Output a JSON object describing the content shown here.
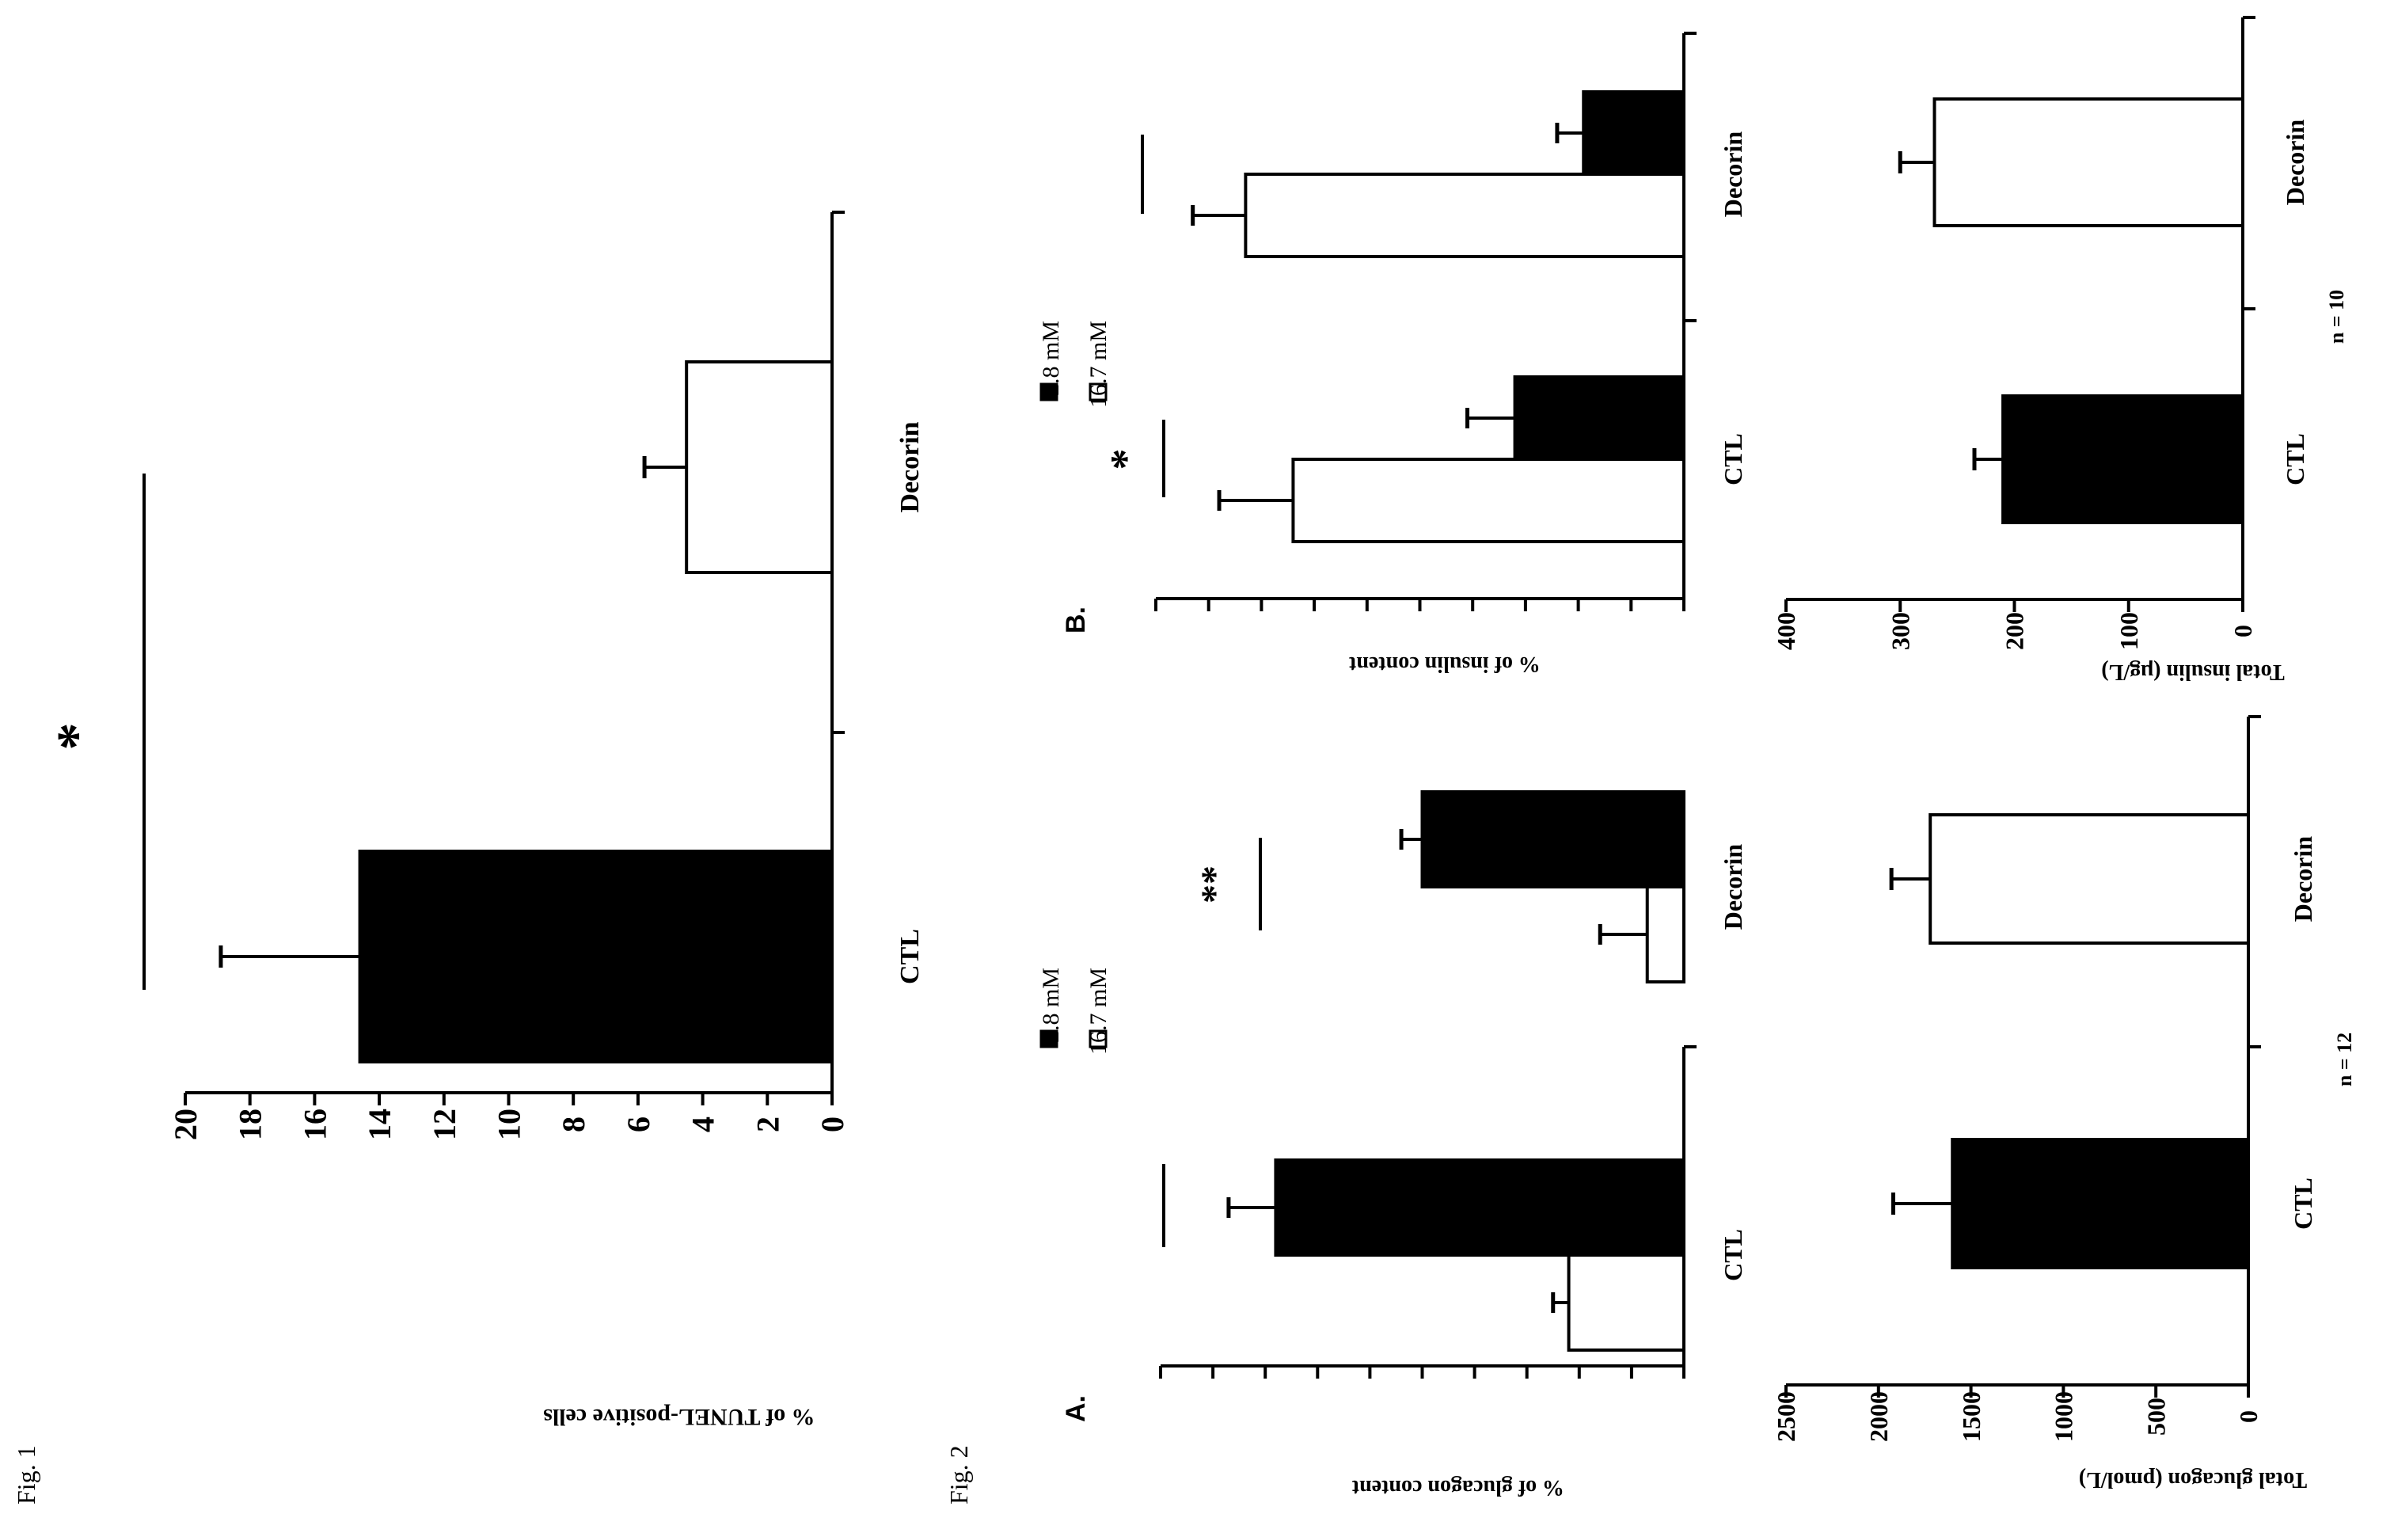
{
  "figure_labels": {
    "fig1": "Fig. 1",
    "fig2": "Fig. 2"
  },
  "panel_labels": {
    "a": "A.",
    "b": "B."
  },
  "legend": {
    "low": "2.8 mM",
    "high": "16.7 mM"
  },
  "colors": {
    "low": "#000000",
    "high": "#ffffff"
  },
  "chart_data": [
    {
      "id": "fig1",
      "type": "bar",
      "categories": [
        "CTL",
        "Decorin"
      ],
      "values": [
        14.6,
        4.5
      ],
      "errors": [
        4.3,
        1.3
      ],
      "ylabel": "% of TUNEL-positive cells",
      "ylim": [
        0,
        20
      ],
      "yticks": [
        0,
        2,
        4,
        6,
        8,
        10,
        12,
        14,
        16,
        18,
        20
      ],
      "significance": [
        {
          "between": [
            "CTL",
            "Decorin"
          ],
          "label": "*"
        }
      ]
    },
    {
      "id": "fig2A_top",
      "type": "bar",
      "categories": [
        "CTL",
        "Decorin"
      ],
      "series": [
        {
          "name": "2.8 mM",
          "values": [
            7.8,
            5.0
          ],
          "errors": [
            0.9,
            0.4
          ]
        },
        {
          "name": "16.7 mM",
          "values": [
            2.2,
            0.7
          ],
          "errors": [
            0.3,
            0.9
          ]
        }
      ],
      "ylabel": "% of glucagon content",
      "ylim": [
        0,
        10
      ],
      "yticks": [
        0,
        1,
        2,
        3,
        4,
        5,
        6,
        7,
        8,
        9,
        10
      ],
      "significance": [
        {
          "category": "CTL",
          "label": ""
        },
        {
          "category": "Decorin",
          "label": "**"
        }
      ]
    },
    {
      "id": "fig2A_bottom",
      "type": "bar",
      "categories": [
        "CTL",
        "Decorin"
      ],
      "values": [
        1600,
        1720
      ],
      "errors": [
        320,
        210
      ],
      "ylabel": "Total glucagon (pmol/L)",
      "ylim": [
        0,
        2500
      ],
      "yticks": [
        0,
        500,
        1000,
        1500,
        2000,
        2500
      ],
      "note": "n = 12"
    },
    {
      "id": "fig2B_top",
      "type": "bar",
      "categories": [
        "CTL",
        "Decorin"
      ],
      "series": [
        {
          "name": "2.8 mM",
          "values": [
            3.2,
            1.9
          ],
          "errors": [
            0.9,
            0.5
          ]
        },
        {
          "name": "16.7 mM",
          "values": [
            7.4,
            8.3
          ],
          "errors": [
            1.4,
            1.0
          ]
        }
      ],
      "ylabel": "% of insulin content",
      "ylim": [
        0,
        10
      ],
      "yticks": [
        0,
        1,
        2,
        3,
        4,
        5,
        6,
        7,
        8,
        9,
        10
      ],
      "significance": [
        {
          "category": "CTL",
          "label": "*"
        },
        {
          "category": "Decorin",
          "label": ""
        }
      ]
    },
    {
      "id": "fig2B_bottom",
      "type": "bar",
      "categories": [
        "CTL",
        "Decorin"
      ],
      "values": [
        210,
        270
      ],
      "errors": [
        25,
        30
      ],
      "ylabel": "Total insulin (µg/L)",
      "ylim": [
        0,
        400
      ],
      "yticks": [
        0,
        100,
        200,
        300,
        400
      ],
      "note": "n = 10"
    }
  ]
}
